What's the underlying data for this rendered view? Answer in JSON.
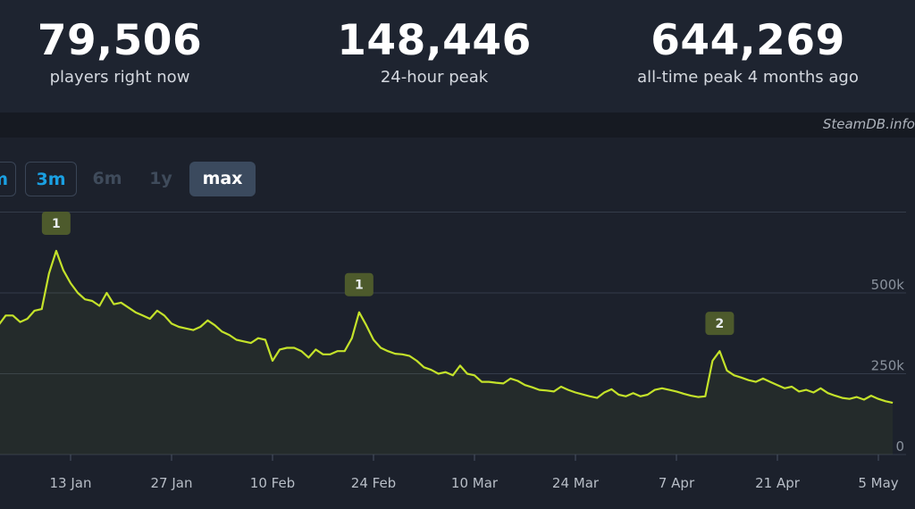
{
  "stats": [
    {
      "value": "79,506",
      "label": "players right now"
    },
    {
      "value": "148,446",
      "label": "24-hour peak"
    },
    {
      "value": "644,269",
      "label": "all-time peak 4 months ago"
    }
  ],
  "brand": "SteamDB.info",
  "range_buttons": {
    "partial": "m",
    "three_months": "3m",
    "six_months": "6m",
    "one_year": "1y",
    "max": "max"
  },
  "colors": {
    "line": "#c4e22a",
    "marker": "#4d5a2c",
    "accent": "#1aa0e2"
  },
  "chart_data": {
    "type": "line",
    "ylim": [
      0,
      750000
    ],
    "y_ticks": [
      0,
      250000,
      500000
    ],
    "y_tick_labels": [
      "0",
      "250k",
      "500k"
    ],
    "x_tick_labels": [
      "13 Jan",
      "27 Jan",
      "10 Feb",
      "24 Feb",
      "10 Mar",
      "24 Mar",
      "7 Apr",
      "21 Apr",
      "5 May"
    ],
    "x_ticks": [
      "2025-01-13",
      "2025-01-27",
      "2025-02-10",
      "2025-02-24",
      "2025-03-10",
      "2025-03-24",
      "2025-04-07",
      "2025-04-21",
      "2025-05-05"
    ],
    "series": [
      {
        "points": [
          [
            "2025-01-03",
            400000
          ],
          [
            "2025-01-04",
            430000
          ],
          [
            "2025-01-05",
            430000
          ],
          [
            "2025-01-06",
            410000
          ],
          [
            "2025-01-07",
            420000
          ],
          [
            "2025-01-08",
            445000
          ],
          [
            "2025-01-09",
            450000
          ],
          [
            "2025-01-10",
            560000
          ],
          [
            "2025-01-11",
            630000
          ],
          [
            "2025-01-12",
            570000
          ],
          [
            "2025-01-13",
            530000
          ],
          [
            "2025-01-14",
            500000
          ],
          [
            "2025-01-15",
            480000
          ],
          [
            "2025-01-16",
            475000
          ],
          [
            "2025-01-17",
            460000
          ],
          [
            "2025-01-18",
            500000
          ],
          [
            "2025-01-19",
            465000
          ],
          [
            "2025-01-20",
            470000
          ],
          [
            "2025-01-21",
            455000
          ],
          [
            "2025-01-22",
            440000
          ],
          [
            "2025-01-23",
            430000
          ],
          [
            "2025-01-24",
            420000
          ],
          [
            "2025-01-25",
            445000
          ],
          [
            "2025-01-26",
            430000
          ],
          [
            "2025-01-27",
            405000
          ],
          [
            "2025-01-28",
            395000
          ],
          [
            "2025-01-29",
            390000
          ],
          [
            "2025-01-30",
            385000
          ],
          [
            "2025-01-31",
            395000
          ],
          [
            "2025-02-01",
            415000
          ],
          [
            "2025-02-02",
            400000
          ],
          [
            "2025-02-03",
            380000
          ],
          [
            "2025-02-04",
            370000
          ],
          [
            "2025-02-05",
            355000
          ],
          [
            "2025-02-06",
            350000
          ],
          [
            "2025-02-07",
            345000
          ],
          [
            "2025-02-08",
            360000
          ],
          [
            "2025-02-09",
            355000
          ],
          [
            "2025-02-10",
            290000
          ],
          [
            "2025-02-11",
            325000
          ],
          [
            "2025-02-12",
            330000
          ],
          [
            "2025-02-13",
            330000
          ],
          [
            "2025-02-14",
            320000
          ],
          [
            "2025-02-15",
            300000
          ],
          [
            "2025-02-16",
            325000
          ],
          [
            "2025-02-17",
            310000
          ],
          [
            "2025-02-18",
            310000
          ],
          [
            "2025-02-19",
            320000
          ],
          [
            "2025-02-20",
            320000
          ],
          [
            "2025-02-21",
            360000
          ],
          [
            "2025-02-22",
            440000
          ],
          [
            "2025-02-23",
            400000
          ],
          [
            "2025-02-24",
            355000
          ],
          [
            "2025-02-25",
            330000
          ],
          [
            "2025-02-26",
            320000
          ],
          [
            "2025-02-27",
            312000
          ],
          [
            "2025-02-28",
            310000
          ],
          [
            "2025-03-01",
            305000
          ],
          [
            "2025-03-02",
            290000
          ],
          [
            "2025-03-03",
            270000
          ],
          [
            "2025-03-04",
            262000
          ],
          [
            "2025-03-05",
            250000
          ],
          [
            "2025-03-06",
            255000
          ],
          [
            "2025-03-07",
            245000
          ],
          [
            "2025-03-08",
            275000
          ],
          [
            "2025-03-09",
            250000
          ],
          [
            "2025-03-10",
            245000
          ],
          [
            "2025-03-11",
            225000
          ],
          [
            "2025-03-12",
            225000
          ],
          [
            "2025-03-13",
            222000
          ],
          [
            "2025-03-14",
            220000
          ],
          [
            "2025-03-15",
            235000
          ],
          [
            "2025-03-16",
            228000
          ],
          [
            "2025-03-17",
            215000
          ],
          [
            "2025-03-18",
            208000
          ],
          [
            "2025-03-19",
            200000
          ],
          [
            "2025-03-20",
            198000
          ],
          [
            "2025-03-21",
            195000
          ],
          [
            "2025-03-22",
            210000
          ],
          [
            "2025-03-23",
            200000
          ],
          [
            "2025-03-24",
            192000
          ],
          [
            "2025-03-25",
            186000
          ],
          [
            "2025-03-26",
            180000
          ],
          [
            "2025-03-27",
            175000
          ],
          [
            "2025-03-28",
            192000
          ],
          [
            "2025-03-29",
            202000
          ],
          [
            "2025-03-30",
            185000
          ],
          [
            "2025-03-31",
            180000
          ],
          [
            "2025-04-01",
            190000
          ],
          [
            "2025-04-02",
            180000
          ],
          [
            "2025-04-03",
            185000
          ],
          [
            "2025-04-04",
            200000
          ],
          [
            "2025-04-05",
            205000
          ],
          [
            "2025-04-06",
            200000
          ],
          [
            "2025-04-07",
            195000
          ],
          [
            "2025-04-08",
            188000
          ],
          [
            "2025-04-09",
            182000
          ],
          [
            "2025-04-10",
            178000
          ],
          [
            "2025-04-11",
            180000
          ],
          [
            "2025-04-12",
            290000
          ],
          [
            "2025-04-13",
            320000
          ],
          [
            "2025-04-14",
            260000
          ],
          [
            "2025-04-15",
            245000
          ],
          [
            "2025-04-16",
            238000
          ],
          [
            "2025-04-17",
            230000
          ],
          [
            "2025-04-18",
            225000
          ],
          [
            "2025-04-19",
            235000
          ],
          [
            "2025-04-20",
            225000
          ],
          [
            "2025-04-21",
            215000
          ],
          [
            "2025-04-22",
            205000
          ],
          [
            "2025-04-23",
            210000
          ],
          [
            "2025-04-24",
            195000
          ],
          [
            "2025-04-25",
            200000
          ],
          [
            "2025-04-26",
            192000
          ],
          [
            "2025-04-27",
            205000
          ],
          [
            "2025-04-28",
            190000
          ],
          [
            "2025-04-29",
            182000
          ],
          [
            "2025-04-30",
            175000
          ],
          [
            "2025-05-01",
            172000
          ],
          [
            "2025-05-02",
            178000
          ],
          [
            "2025-05-03",
            170000
          ],
          [
            "2025-05-04",
            182000
          ],
          [
            "2025-05-05",
            172000
          ],
          [
            "2025-05-06",
            165000
          ],
          [
            "2025-05-07",
            160000
          ]
        ]
      }
    ],
    "markers": [
      {
        "label": "1",
        "date": "2025-01-11",
        "value": 630000
      },
      {
        "label": "1",
        "date": "2025-02-22",
        "value": 440000
      },
      {
        "label": "2",
        "date": "2025-04-13",
        "value": 320000
      }
    ],
    "grid": true
  }
}
